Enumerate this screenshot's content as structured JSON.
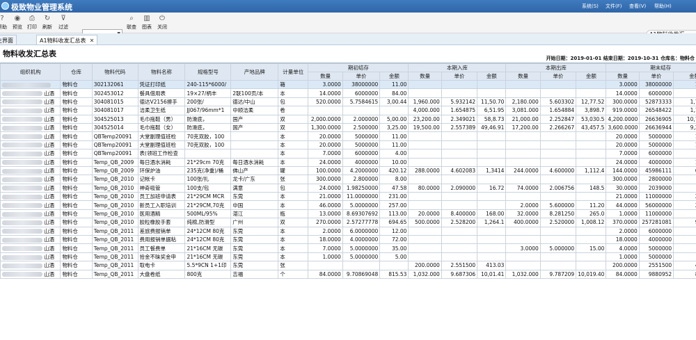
{
  "app": {
    "title": "极致物业管理系统",
    "menus": [
      "系统(S)",
      "文件(F)",
      "查看(V)",
      "帮助(H)"
    ]
  },
  "toolbar": {
    "buttons": [
      {
        "label": "帮助",
        "icon": "help-icon",
        "glyph": "?"
      },
      {
        "label": "预览",
        "icon": "preview-icon",
        "glyph": "◉"
      },
      {
        "label": "打印",
        "icon": "print-icon",
        "glyph": "⎙"
      },
      {
        "label": "刷新",
        "icon": "refresh-icon",
        "glyph": "↻"
      },
      {
        "label": "过滤",
        "icon": "filter-icon",
        "glyph": "⊽"
      }
    ],
    "right_buttons": [
      {
        "label": "联查",
        "icon": "query-icon",
        "glyph": "⌕"
      },
      {
        "label": "图表",
        "icon": "chart-icon",
        "glyph": "▥"
      },
      {
        "label": "关闭",
        "icon": "power-icon",
        "glyph": "⏻"
      }
    ],
    "search_value": "",
    "user_tab": "A1物料收发汇..."
  },
  "tabs": [
    {
      "label": "主界面",
      "active": false
    },
    {
      "label": "A1物料收发汇总表",
      "active": true
    }
  ],
  "report": {
    "title": "物料收发汇总表",
    "info": "开始日期：2019-01-01 结束日期：2019-10-31 仓库名：物料仓"
  },
  "headers": {
    "group": [
      "期初结存",
      "本期入库",
      "本期出库",
      "期末结存"
    ],
    "cols": [
      "组织机构",
      "仓库",
      "物料代码",
      "物料名称",
      "规格型号",
      "产地品牌",
      "计量单位"
    ],
    "sub": [
      "数量",
      "单价",
      "金额"
    ]
  },
  "rows": [
    {
      "org": "",
      "wh": "物料仓",
      "code": "302132061",
      "name": "凭证打印纸",
      "spec": "240-115*6000/",
      "brand": "",
      "unit": "箱",
      "o": [
        "3.0000",
        "38000000",
        "11.00"
      ],
      "i": [
        "",
        "",
        ""
      ],
      "x": [
        "",
        "",
        ""
      ],
      "c": [
        "3.0000",
        "38000000",
        "114.00"
      ]
    },
    {
      "org": "山酒",
      "wh": "物料仓",
      "code": "302453012",
      "name": "餐具借用表",
      "spec": "19×27/柄丰",
      "brand": "2联100页/本",
      "unit": "本",
      "o": [
        "14.0000",
        "6000000",
        "84.00"
      ],
      "i": [
        "",
        "",
        ""
      ],
      "x": [
        "",
        "",
        ""
      ],
      "c": [
        "14.0000",
        "6000000",
        "84.00"
      ]
    },
    {
      "org": "山酒",
      "wh": "物料仓",
      "code": "304081015",
      "name": "德达V2156擦手",
      "spec": "200张/",
      "brand": "德达/中山",
      "unit": "包",
      "o": [
        "520.0000",
        "5.7584615",
        "3,00.44"
      ],
      "i": [
        "1,960.000",
        "5.932142",
        "11,50.70"
      ],
      "x": [
        "2,180.000",
        "5.603302",
        "12,77.52"
      ],
      "c": [
        "300.0000",
        "52873333",
        "1,778.20"
      ]
    },
    {
      "org": "山酒",
      "wh": "物料仓",
      "code": "304081017",
      "name": "洁柔卫生纸",
      "spec": "JJ067/96mm*1",
      "brand": "中顺洁柔",
      "unit": "卷",
      "o": [
        "",
        "",
        ""
      ],
      "i": [
        "4,000.000",
        "1.654875",
        "6,51.95"
      ],
      "x": [
        "3,081.000",
        "1.654884",
        "3,898.7"
      ],
      "c": [
        "919.0000",
        "26548422",
        "1,162.65"
      ]
    },
    {
      "org": "山酒",
      "wh": "物料仓",
      "code": "304525013",
      "name": "毛巾拖鞋（男）",
      "spec": "防滑底，",
      "brand": "国产",
      "unit": "双",
      "o": [
        "2,000.0000",
        "2.000000",
        "5,00.00"
      ],
      "i": [
        "23,200.00",
        "2.349021",
        "58,8.73"
      ],
      "x": [
        "21,000.00",
        "2.252847",
        "53,030.5"
      ],
      "c": [
        "4,200.0000",
        "26636905",
        "10,778.56"
      ]
    },
    {
      "org": "山酒",
      "wh": "物料仓",
      "code": "304525014",
      "name": "毛巾拖鞋（女）",
      "spec": "防滑底，",
      "brand": "国产",
      "unit": "双",
      "o": [
        "1,300.0000",
        "2.500000",
        "3,25.00"
      ],
      "i": [
        "19,500.00",
        "2.557389",
        "49,46.91"
      ],
      "x": [
        "17,200.00",
        "2.266267",
        "43,457.5"
      ],
      "c": [
        "3,600.0000",
        "26636944",
        "9,239.33"
      ]
    },
    {
      "org": "山酒",
      "wh": "物料仓",
      "code": "QBTemp20091",
      "name": "大堂副理值班检",
      "spec": "70克双胶，100",
      "brand": "",
      "unit": "本",
      "o": [
        "20.0000",
        "5000000",
        "11.00"
      ],
      "i": [
        "",
        "",
        ""
      ],
      "x": [
        "",
        "",
        ""
      ],
      "c": [
        "20.0000",
        "5000000",
        "110.00"
      ]
    },
    {
      "org": "山酒",
      "wh": "物料仓",
      "code": "QBTemp20091",
      "name": "大堂副理值班检",
      "spec": "70克双胶，100",
      "brand": "",
      "unit": "本",
      "o": [
        "20.0000",
        "5000000",
        "11.00"
      ],
      "i": [
        "",
        "",
        ""
      ],
      "x": [
        "",
        "",
        ""
      ],
      "c": [
        "20.0000",
        "5000000",
        "110.00"
      ]
    },
    {
      "org": "山酒",
      "wh": "物料仓",
      "code": "QBTemp20091",
      "name": "表(领班工作检查",
      "spec": "",
      "brand": "",
      "unit": "本",
      "o": [
        "7.0000",
        "6000000",
        "4.00"
      ],
      "i": [
        "",
        "",
        ""
      ],
      "x": [
        "",
        "",
        ""
      ],
      "c": [
        "7.0000",
        "6000000",
        "42.00"
      ]
    },
    {
      "org": "山酒",
      "wh": "物料仓",
      "code": "Temp_QB_2009",
      "name": "每日酒水消耗",
      "spec": "21*29cm 70克",
      "brand": "每日酒水消耗",
      "unit": "本",
      "o": [
        "24.0000",
        "4000000",
        "10.00"
      ],
      "i": [
        "",
        "",
        ""
      ],
      "x": [
        "",
        "",
        ""
      ],
      "c": [
        "24.0000",
        "4000000",
        "100.00"
      ]
    },
    {
      "org": "山酒",
      "wh": "物料仓",
      "code": "Temp_QB_2009",
      "name": "环保炉油",
      "spec": "235克(净重)/桶",
      "brand": "佛山产",
      "unit": "罐",
      "o": [
        "100.0000",
        "4.2000000",
        "420.12"
      ],
      "i": [
        "288.0000",
        "4.602083",
        "1,3414"
      ],
      "x": [
        "244.0000",
        "4.600000",
        "1,112.4"
      ],
      "c": [
        "144.0000",
        "45986111",
        "662.50"
      ]
    },
    {
      "org": "山酒",
      "wh": "物料仓",
      "code": "Temp_QB_2010",
      "name": "记帐卡",
      "spec": "100张/扎",
      "brand": "龙卡/广东",
      "unit": "张",
      "o": [
        "300.0000",
        "2.800000",
        "8.00"
      ],
      "i": [
        "",
        "",
        ""
      ],
      "x": [
        "",
        "",
        ""
      ],
      "c": [
        "300.0000",
        "2800000",
        "8.00"
      ]
    },
    {
      "org": "山酒",
      "wh": "物料仓",
      "code": "Temp_QB_2010",
      "name": "神奇吸管",
      "spec": "100支/包",
      "brand": "满意",
      "unit": "包",
      "o": [
        "24.0000",
        "1.98250000",
        "47.58"
      ],
      "i": [
        "80.0000",
        "2.090000",
        "16.72"
      ],
      "x": [
        "74.0000",
        "2.006756",
        "148.5"
      ],
      "c": [
        "30.0000",
        "2039000",
        "61.17"
      ]
    },
    {
      "org": "山酒",
      "wh": "物料仓",
      "code": "Temp_QB_2010",
      "name": "员工加班申请表",
      "spec": "21*29CM MCR",
      "brand": "东莞",
      "unit": "本",
      "o": [
        "21.0000",
        "11.0000000",
        "231.00"
      ],
      "i": [
        "",
        "",
        ""
      ],
      "x": [
        "",
        "",
        ""
      ],
      "c": [
        "21.0000",
        "11000000",
        "231.00"
      ]
    },
    {
      "org": "山酒",
      "wh": "物料仓",
      "code": "Temp_QB_2010",
      "name": "新员工入职培训",
      "spec": "21*29CM,70克",
      "brand": "中国",
      "unit": "本",
      "o": [
        "46.0000",
        "5.0000000",
        "257.00"
      ],
      "i": [
        "",
        "",
        ""
      ],
      "x": [
        "2.0000",
        "5.600000",
        "11.20"
      ],
      "c": [
        "44.0000",
        "56000000",
        "246.40"
      ]
    },
    {
      "org": "山酒",
      "wh": "物料仓",
      "code": "Temp_QB_2010",
      "name": "医用酒精",
      "spec": "500ML/95%",
      "brand": "湛江",
      "unit": "瓶",
      "o": [
        "13.0000",
        "8.69307692",
        "113.00"
      ],
      "i": [
        "20.0000",
        "8.400000",
        "168.00"
      ],
      "x": [
        "32.0000",
        "8.281250",
        "265.0"
      ],
      "c": [
        "1.0000",
        "11000000",
        "11.00"
      ]
    },
    {
      "org": "山酒",
      "wh": "物料仓",
      "code": "Temp_QB_2010",
      "name": "胶粒橡胶手套",
      "spec": "纯棉,防滑型",
      "brand": "广州",
      "unit": "双",
      "o": [
        "270.0000",
        "2.57277778",
        "694.65"
      ],
      "i": [
        "500.0000",
        "2.528200",
        "1,264.1"
      ],
      "x": [
        "400.0000",
        "2.520000",
        "1,008.12"
      ],
      "c": [
        "370.0000",
        "257281081",
        "951.94"
      ]
    },
    {
      "org": "山酒",
      "wh": "物料仓",
      "code": "Temp_QB_2011",
      "name": "差旅费报销单",
      "spec": "24*12CM 80克",
      "brand": "东莞",
      "unit": "本",
      "o": [
        "2.0000",
        "6.0000000",
        "12.00"
      ],
      "i": [
        "",
        "",
        ""
      ],
      "x": [
        "",
        "",
        ""
      ],
      "c": [
        "2.0000",
        "6000000",
        "12.00"
      ]
    },
    {
      "org": "山酒",
      "wh": "物料仓",
      "code": "Temp_QB_2011",
      "name": "费用报销单据粘",
      "spec": "24*12CM 80克",
      "brand": "东莞",
      "unit": "本",
      "o": [
        "18.0000",
        "4.0000000",
        "72.00"
      ],
      "i": [
        "",
        "",
        ""
      ],
      "x": [
        "",
        "",
        ""
      ],
      "c": [
        "18.0000",
        "4000000",
        "72.00"
      ]
    },
    {
      "org": "山酒",
      "wh": "物料仓",
      "code": "Temp_QB_2011",
      "name": "员工餐费单",
      "spec": "21*16CM 无碳",
      "brand": "东莞",
      "unit": "本",
      "o": [
        "7.0000",
        "5.0000000",
        "35.00"
      ],
      "i": [
        "",
        "",
        ""
      ],
      "x": [
        "3.0000",
        "5.000000",
        "15.00"
      ],
      "c": [
        "4.0000",
        "5000000",
        "20.00"
      ]
    },
    {
      "org": "山酒",
      "wh": "物料仓",
      "code": "Temp_QB_2011",
      "name": "拾金不昧奖金申",
      "spec": "21*16CM 无碳",
      "brand": "东莞",
      "unit": "本",
      "o": [
        "1.0000",
        "5.0000000",
        "5.00"
      ],
      "i": [
        "",
        "",
        ""
      ],
      "x": [
        "",
        "",
        ""
      ],
      "c": [
        "1.0000",
        "5000000",
        "5.00"
      ]
    },
    {
      "org": "山酒",
      "wh": "物料仓",
      "code": "Temp_QB_2011",
      "name": "取电卡",
      "spec": "5.5*9CN 1+1印",
      "brand": "东莞",
      "unit": "张",
      "o": [
        "",
        "",
        ""
      ],
      "i": [
        "200.0000",
        "2.551500",
        "413.03"
      ],
      "x": [
        "",
        "",
        ""
      ],
      "c": [
        "200.0000",
        "2551500",
        "413.03"
      ]
    },
    {
      "org": "山酒",
      "wh": "物料仓",
      "code": "Temp_QB_2011",
      "name": "大盘卷纸",
      "spec": "800克",
      "brand": "吉福",
      "unit": "个",
      "o": [
        "84.0000",
        "9.70869048",
        "815.53"
      ],
      "i": [
        "1,032.000",
        "9.687306",
        "10,01.41"
      ],
      "x": [
        "1,032.000",
        "9.787209",
        "10,019.40"
      ],
      "c": [
        "84.0000",
        "9880952",
        "815.21"
      ]
    }
  ]
}
